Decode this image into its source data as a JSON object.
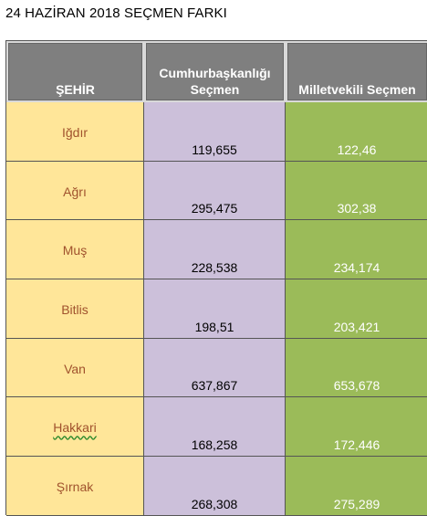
{
  "title": "24 HAZİRAN 2018 SEÇMEN FARKI",
  "header": {
    "city": "ŞEHİR",
    "presidential": "Cumhurbaşkanlığı Seçmen",
    "parliamentary": "Milletvekili Seçmen"
  },
  "rows": [
    {
      "city": "Iğdır",
      "presidential": "119,655",
      "parliamentary": "122,46"
    },
    {
      "city": "Ağrı",
      "presidential": "295,475",
      "parliamentary": "302,38"
    },
    {
      "city": "Muş",
      "presidential": "228,538",
      "parliamentary": "234,174"
    },
    {
      "city": "Bitlis",
      "presidential": "198,51",
      "parliamentary": "203,421"
    },
    {
      "city": "Van",
      "presidential": "637,867",
      "parliamentary": "653,678"
    },
    {
      "city": "Hakkari",
      "presidential": "168,258",
      "parliamentary": "172,446"
    },
    {
      "city": "Şırnak",
      "presidential": "268,308",
      "parliamentary": "275,289"
    }
  ],
  "colors": {
    "header_bg": "#7f7f7f",
    "city_bg": "#ffe699",
    "presidential_bg": "#ccc0da",
    "parliamentary_bg": "#9bbb59"
  }
}
